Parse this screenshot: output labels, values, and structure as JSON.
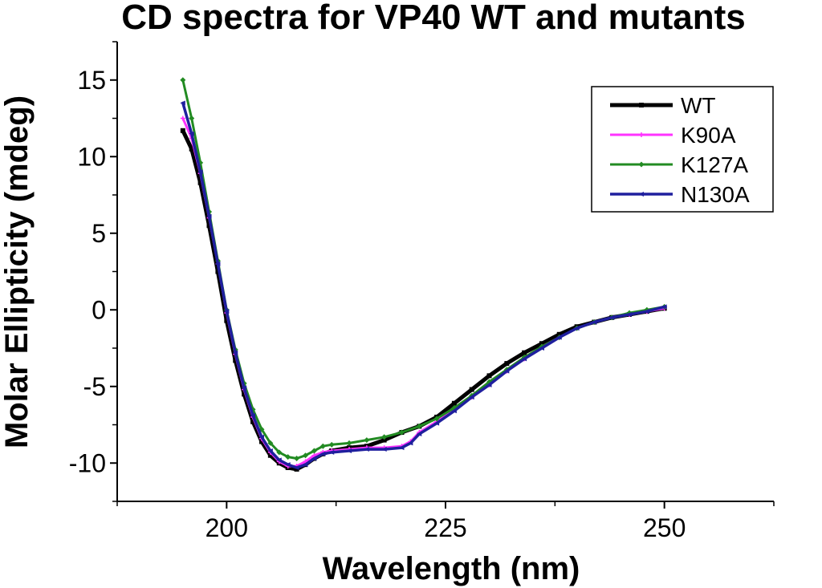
{
  "chart_data": {
    "type": "line",
    "title": "CD spectra for VP40 WT and mutants",
    "xlabel": "Wavelength (nm)",
    "ylabel": "Molar Ellipticity (mdeg)",
    "xlim": [
      187.5,
      262.5
    ],
    "ylim": [
      -12.5,
      17.5
    ],
    "xticks": [
      200,
      225,
      250
    ],
    "yticks": [
      -10,
      -5,
      0,
      5,
      10,
      15
    ],
    "x_tick_labels": [
      "200",
      "225",
      "250"
    ],
    "y_tick_labels": [
      "-10",
      "-5",
      "0",
      "5",
      "10",
      "15"
    ],
    "grid": false,
    "legend_position": "top-right",
    "series": [
      {
        "name": "WT",
        "color": "#000000",
        "marker": "square",
        "points": [
          [
            195,
            11.7
          ],
          [
            196,
            10.5
          ],
          [
            197,
            8.3
          ],
          [
            198,
            5.5
          ],
          [
            199,
            2.5
          ],
          [
            200,
            -0.7
          ],
          [
            201,
            -3.3
          ],
          [
            202,
            -5.5
          ],
          [
            203,
            -7.3
          ],
          [
            204,
            -8.6
          ],
          [
            205,
            -9.5
          ],
          [
            206,
            -10.0
          ],
          [
            207,
            -10.3
          ],
          [
            208,
            -10.4
          ],
          [
            209,
            -10.1
          ],
          [
            210,
            -9.7
          ],
          [
            211,
            -9.4
          ],
          [
            212,
            -9.2
          ],
          [
            214,
            -9.0
          ],
          [
            216,
            -8.9
          ],
          [
            218,
            -8.5
          ],
          [
            220,
            -8.0
          ],
          [
            222,
            -7.6
          ],
          [
            224,
            -7.0
          ],
          [
            226,
            -6.1
          ],
          [
            228,
            -5.2
          ],
          [
            230,
            -4.3
          ],
          [
            232,
            -3.5
          ],
          [
            234,
            -2.8
          ],
          [
            236,
            -2.2
          ],
          [
            238,
            -1.6
          ],
          [
            240,
            -1.1
          ],
          [
            242,
            -0.8
          ],
          [
            244,
            -0.5
          ],
          [
            246,
            -0.3
          ],
          [
            248,
            -0.1
          ],
          [
            250,
            0.1
          ]
        ]
      },
      {
        "name": "K90A",
        "color": "#ff33ff",
        "marker": "plus",
        "points": [
          [
            195,
            12.5
          ],
          [
            196,
            11.2
          ],
          [
            197,
            8.9
          ],
          [
            198,
            6.0
          ],
          [
            199,
            3.0
          ],
          [
            200,
            -0.2
          ],
          [
            201,
            -2.9
          ],
          [
            202,
            -5.2
          ],
          [
            203,
            -7.0
          ],
          [
            204,
            -8.4
          ],
          [
            205,
            -9.3
          ],
          [
            206,
            -9.9
          ],
          [
            207,
            -10.2
          ],
          [
            208,
            -10.2
          ],
          [
            209,
            -9.9
          ],
          [
            210,
            -9.5
          ],
          [
            211,
            -9.3
          ],
          [
            212,
            -9.2
          ],
          [
            214,
            -9.1
          ],
          [
            216,
            -9.0
          ],
          [
            218,
            -9.0
          ],
          [
            220,
            -8.9
          ],
          [
            221,
            -8.6
          ],
          [
            222,
            -8.0
          ],
          [
            224,
            -7.3
          ],
          [
            226,
            -6.5
          ],
          [
            228,
            -5.7
          ],
          [
            230,
            -4.9
          ],
          [
            232,
            -4.0
          ],
          [
            234,
            -3.2
          ],
          [
            236,
            -2.4
          ],
          [
            238,
            -1.8
          ],
          [
            240,
            -1.2
          ],
          [
            242,
            -0.8
          ],
          [
            244,
            -0.5
          ],
          [
            246,
            -0.3
          ],
          [
            248,
            -0.1
          ],
          [
            250,
            0.1
          ]
        ]
      },
      {
        "name": "K127A",
        "color": "#228b22",
        "marker": "diamond",
        "points": [
          [
            195,
            15.0
          ],
          [
            196,
            12.5
          ],
          [
            197,
            9.6
          ],
          [
            198,
            6.4
          ],
          [
            199,
            3.2
          ],
          [
            200,
            0.0
          ],
          [
            201,
            -2.6
          ],
          [
            202,
            -4.8
          ],
          [
            203,
            -6.5
          ],
          [
            204,
            -7.8
          ],
          [
            205,
            -8.7
          ],
          [
            206,
            -9.3
          ],
          [
            207,
            -9.6
          ],
          [
            208,
            -9.7
          ],
          [
            209,
            -9.5
          ],
          [
            210,
            -9.2
          ],
          [
            211,
            -8.9
          ],
          [
            212,
            -8.8
          ],
          [
            214,
            -8.7
          ],
          [
            216,
            -8.5
          ],
          [
            218,
            -8.3
          ],
          [
            220,
            -8.0
          ],
          [
            222,
            -7.6
          ],
          [
            224,
            -7.1
          ],
          [
            226,
            -6.4
          ],
          [
            228,
            -5.6
          ],
          [
            230,
            -4.7
          ],
          [
            232,
            -3.9
          ],
          [
            234,
            -3.1
          ],
          [
            236,
            -2.4
          ],
          [
            238,
            -1.8
          ],
          [
            240,
            -1.2
          ],
          [
            242,
            -0.8
          ],
          [
            244,
            -0.5
          ],
          [
            246,
            -0.2
          ],
          [
            248,
            0.0
          ],
          [
            250,
            0.2
          ]
        ]
      },
      {
        "name": "N130A",
        "color": "#1f1f9e",
        "marker": "triangle-left",
        "points": [
          [
            195,
            13.5
          ],
          [
            196,
            11.5
          ],
          [
            197,
            9.0
          ],
          [
            198,
            6.1
          ],
          [
            199,
            3.0
          ],
          [
            200,
            -0.1
          ],
          [
            201,
            -2.8
          ],
          [
            202,
            -5.1
          ],
          [
            203,
            -6.9
          ],
          [
            204,
            -8.3
          ],
          [
            205,
            -9.2
          ],
          [
            206,
            -9.8
          ],
          [
            207,
            -10.1
          ],
          [
            208,
            -10.3
          ],
          [
            209,
            -10.1
          ],
          [
            210,
            -9.7
          ],
          [
            211,
            -9.4
          ],
          [
            212,
            -9.3
          ],
          [
            214,
            -9.2
          ],
          [
            216,
            -9.1
          ],
          [
            218,
            -9.1
          ],
          [
            220,
            -9.0
          ],
          [
            221,
            -8.7
          ],
          [
            222,
            -8.1
          ],
          [
            224,
            -7.4
          ],
          [
            226,
            -6.6
          ],
          [
            228,
            -5.7
          ],
          [
            230,
            -4.9
          ],
          [
            232,
            -4.0
          ],
          [
            234,
            -3.2
          ],
          [
            236,
            -2.5
          ],
          [
            238,
            -1.8
          ],
          [
            240,
            -1.2
          ],
          [
            242,
            -0.8
          ],
          [
            244,
            -0.5
          ],
          [
            246,
            -0.3
          ],
          [
            248,
            -0.1
          ],
          [
            250,
            0.2
          ]
        ]
      }
    ]
  }
}
